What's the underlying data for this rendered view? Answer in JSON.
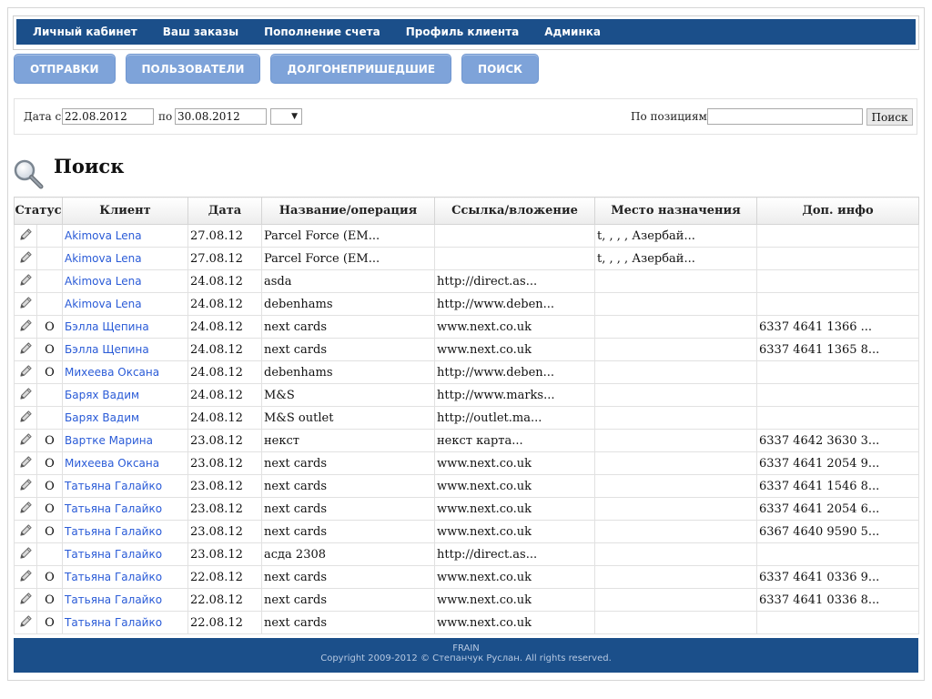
{
  "nav": {
    "items": [
      "Личный кабинет",
      "Ваш заказы",
      "Пополнение счета",
      "Профиль клиента",
      "Админка"
    ]
  },
  "actions": {
    "buttons": [
      "ОТПРАВКИ",
      "ПОЛЬЗОВАТЕЛИ",
      "ДОЛГОНЕПРИШЕДШИЕ",
      "ПОИСК"
    ]
  },
  "filter": {
    "date_from_label": "Дата с",
    "date_from": "22.08.2012",
    "date_to_label": "по",
    "date_to": "30.08.2012",
    "select_arrow": "▼",
    "positions_label": "По позициям",
    "positions_value": "",
    "search_button": "Поиск"
  },
  "page": {
    "title": "Поиск"
  },
  "table": {
    "columns": [
      "Статус",
      "Клиент",
      "Дата",
      "Название/операция",
      "Ссылка/вложение",
      "Место назначения",
      "Доп. инфо"
    ],
    "rows": [
      {
        "status": "",
        "client": "Akimova Lena",
        "date": "27.08.12",
        "name": "Parcel Force (EM...",
        "link": "",
        "dest": "t, , , , Азербай...",
        "info": ""
      },
      {
        "status": "",
        "client": "Akimova Lena",
        "date": "27.08.12",
        "name": "Parcel Force (EM...",
        "link": "",
        "dest": "t, , , , Азербай...",
        "info": ""
      },
      {
        "status": "",
        "client": "Akimova Lena",
        "date": "24.08.12",
        "name": "asda",
        "link": "http://direct.as...",
        "dest": "",
        "info": ""
      },
      {
        "status": "",
        "client": "Akimova Lena",
        "date": "24.08.12",
        "name": "debenhams",
        "link": "http://www.deben...",
        "dest": "",
        "info": ""
      },
      {
        "status": "О",
        "client": "Бэлла Щепина",
        "date": "24.08.12",
        "name": "next cards",
        "link": "www.next.co.uk",
        "dest": "",
        "info": "6337 4641 1366 ..."
      },
      {
        "status": "О",
        "client": "Бэлла Щепина",
        "date": "24.08.12",
        "name": "next cards",
        "link": "www.next.co.uk",
        "dest": "",
        "info": "6337 4641 1365 8..."
      },
      {
        "status": "О",
        "client": "Михеева Оксана",
        "date": "24.08.12",
        "name": "debenhams",
        "link": "http://www.deben...",
        "dest": "",
        "info": ""
      },
      {
        "status": "",
        "client": "Барях Вадим",
        "date": "24.08.12",
        "name": "M&S",
        "link": "http://www.marks...",
        "dest": "",
        "info": ""
      },
      {
        "status": "",
        "client": "Барях Вадим",
        "date": "24.08.12",
        "name": "M&S outlet",
        "link": "http://outlet.ma...",
        "dest": "",
        "info": ""
      },
      {
        "status": "О",
        "client": "Вартке Марина",
        "date": "23.08.12",
        "name": "некст",
        "link": "некст карта...",
        "dest": "",
        "info": "6337 4642 3630 3..."
      },
      {
        "status": "О",
        "client": "Михеева Оксана",
        "date": "23.08.12",
        "name": "next cards",
        "link": "www.next.co.uk",
        "dest": "",
        "info": "6337 4641 2054 9..."
      },
      {
        "status": "О",
        "client": "Татьяна Галайко",
        "date": "23.08.12",
        "name": "next cards",
        "link": "www.next.co.uk",
        "dest": "",
        "info": "6337 4641 1546 8..."
      },
      {
        "status": "О",
        "client": "Татьяна Галайко",
        "date": "23.08.12",
        "name": "next cards",
        "link": "www.next.co.uk",
        "dest": "",
        "info": "6337 4641 2054 6..."
      },
      {
        "status": "О",
        "client": "Татьяна Галайко",
        "date": "23.08.12",
        "name": "next cards",
        "link": "www.next.co.uk",
        "dest": "",
        "info": "6367 4640 9590 5..."
      },
      {
        "status": "",
        "client": "Татьяна Галайко",
        "date": "23.08.12",
        "name": "асда 2308",
        "link": "http://direct.as...",
        "dest": "",
        "info": ""
      },
      {
        "status": "О",
        "client": "Татьяна Галайко",
        "date": "22.08.12",
        "name": "next cards",
        "link": "www.next.co.uk",
        "dest": "",
        "info": "6337 4641 0336 9..."
      },
      {
        "status": "О",
        "client": "Татьяна Галайко",
        "date": "22.08.12",
        "name": "next cards",
        "link": "www.next.co.uk",
        "dest": "",
        "info": "6337 4641 0336 8..."
      },
      {
        "status": "О",
        "client": "Татьяна Галайко",
        "date": "22.08.12",
        "name": "next cards",
        "link": "www.next.co.uk",
        "dest": "",
        "info": ""
      }
    ]
  },
  "footer": {
    "line1": "FRAIN",
    "line2": "Copyright 2009-2012 © Степанчук Руслан. All rights reserved."
  },
  "colors": {
    "nav_bg": "#1b4f8a",
    "button_bg": "#7ea3d9",
    "link": "#2a5bd7"
  }
}
